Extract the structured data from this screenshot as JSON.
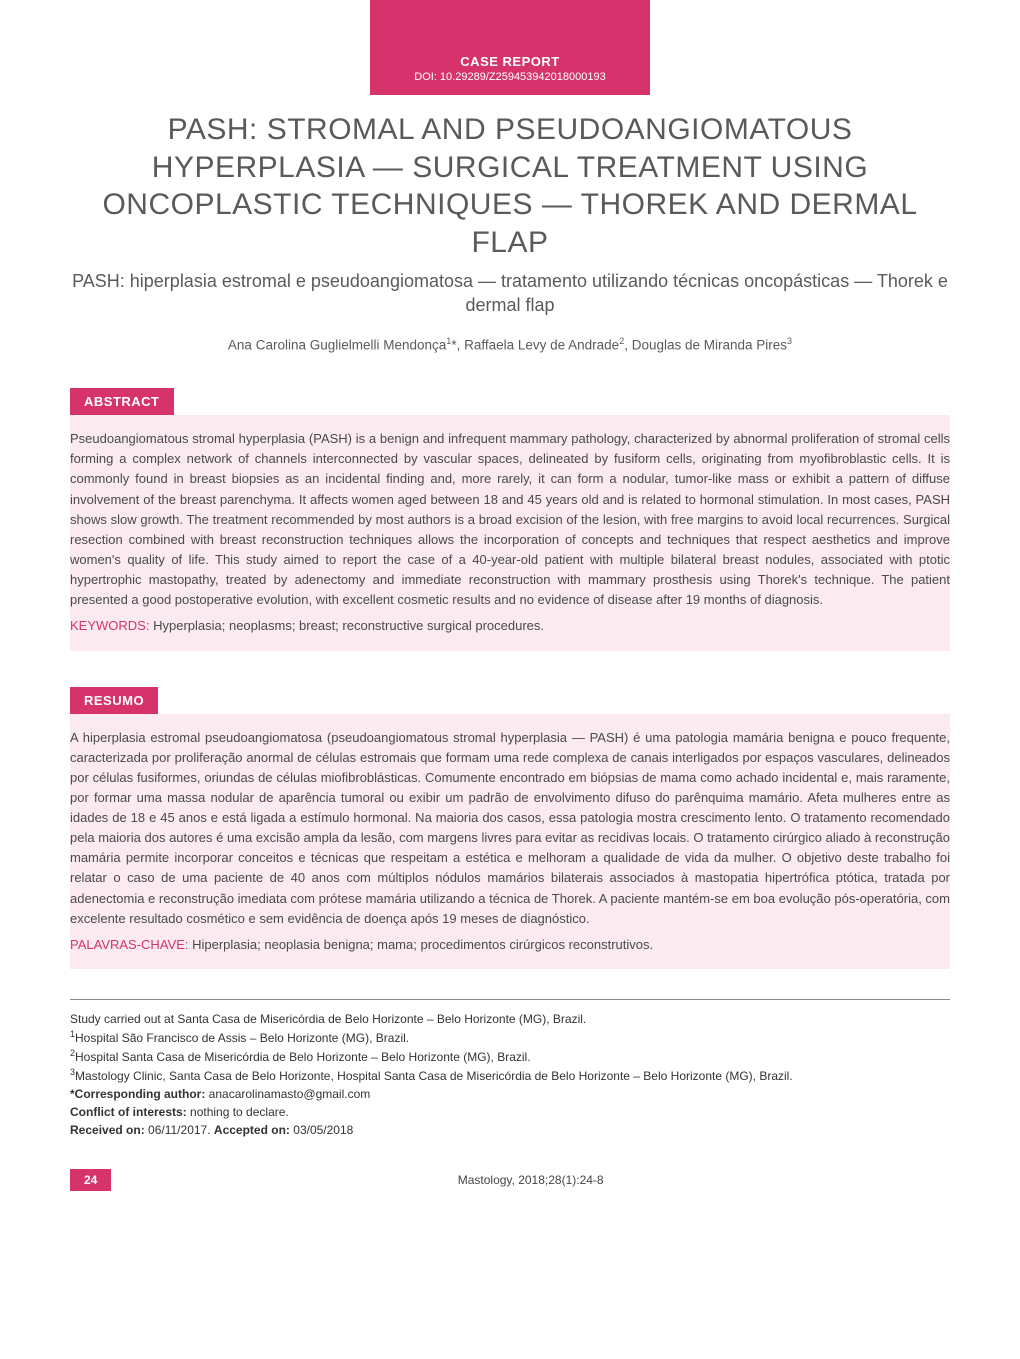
{
  "header": {
    "label": "CASE REPORT",
    "doi": "DOI: 10.29289/Z259453942018000193"
  },
  "title_en": "PASH: STROMAL AND PSEUDOANGIOMATOUS HYPERPLASIA — SURGICAL TREATMENT USING ONCOPLASTIC TECHNIQUES — THOREK AND DERMAL FLAP",
  "title_pt": "PASH: hiperplasia estromal e pseudoangiomatosa — tratamento utilizando técnicas oncopásticas — Thorek e dermal flap",
  "authors_html": "Ana Carolina Guglielmelli Mendonça<sup>1</sup>*, Raffaela Levy de Andrade<sup>2</sup>, Douglas de Miranda Pires<sup>3</sup>",
  "abstract": {
    "heading": "ABSTRACT",
    "body": "Pseudoangiomatous stromal hyperplasia (PASH) is a benign and infrequent mammary pathology, characterized by abnormal proliferation of stromal cells forming a complex network of channels interconnected by vascular spaces, delineated by fusiform cells, originating from myofibroblastic cells. It is commonly found in breast biopsies as an incidental finding and, more rarely, it can form a nodular, tumor-like mass or exhibit a pattern of diffuse involvement of the breast parenchyma. It affects women aged between 18 and 45 years old and is related to hormonal stimulation. In most cases, PASH shows slow growth. The treatment recommended by most authors is a broad excision of the lesion, with free margins to avoid local recurrences. Surgical resection combined with breast reconstruction techniques allows the incorporation of concepts and techniques that respect aesthetics and improve women's quality of life. This study aimed to report the case of a 40-year-old patient with multiple bilateral breast nodules, associated with ptotic hypertrophic mastopathy, treated by adenectomy and immediate reconstruction with mammary prosthesis using Thorek's technique. The patient presented a good postoperative evolution, with excellent cosmetic results and no evidence of disease after 19 months of diagnosis.",
    "keywords_label": "KEYWORDS:",
    "keywords": "Hyperplasia; neoplasms; breast; reconstructive surgical procedures."
  },
  "resumo": {
    "heading": "RESUMO",
    "body": "A hiperplasia estromal pseudoangiomatosa (pseudoangiomatous stromal hyperplasia — PASH) é uma patologia mamária benigna e pouco frequente, caracterizada por proliferação anormal de células estromais que formam uma rede complexa de canais interligados por espaços vasculares, delineados por células fusiformes, oriundas de células miofibroblásticas. Comumente encontrado em biópsias de mama como achado incidental e, mais raramente, por formar uma massa nodular de aparência tumoral ou exibir um padrão de envolvimento difuso do parênquima mamário. Afeta mulheres entre as idades de 18 e 45 anos e está ligada a estímulo hormonal. Na maioria dos casos, essa patologia mostra crescimento lento. O tratamento recomendado pela maioria dos autores é uma excisão ampla da lesão, com margens livres para evitar as recidivas locais. O tratamento cirúrgico aliado à reconstrução mamária permite incorporar conceitos e técnicas que respeitam a estética e melhoram a qualidade de vida da mulher. O objetivo deste trabalho foi relatar o caso de uma paciente de 40 anos com múltiplos nódulos mamários bilaterais associados à mastopatia hipertrófica ptótica, tratada por adenectomia e reconstrução imediata com prótese mamária utilizando a técnica de Thorek. A paciente mantém-se em boa evolução pós-operatória, com excelente resultado cosmético e sem evidência de doença após 19 meses de diagnóstico.",
    "keywords_label": "PALAVRAS-CHAVE:",
    "keywords": "Hiperplasia; neoplasia benigna; mama; procedimentos cirúrgicos reconstrutivos."
  },
  "footer": {
    "study_location": "Study carried out at Santa Casa de Misericórdia de Belo Horizonte – Belo Horizonte (MG), Brazil.",
    "affil1": "Hospital São Francisco de Assis – Belo Horizonte (MG), Brazil.",
    "affil2": "Hospital Santa Casa de Misericórdia de Belo Horizonte – Belo Horizonte (MG), Brazil.",
    "affil3": "Mastology Clinic, Santa Casa de Belo Horizonte, Hospital Santa Casa de Misericórdia de Belo Horizonte – Belo Horizonte (MG), Brazil.",
    "corresponding_label": "*Corresponding author:",
    "corresponding_email": "anacarolinamasto@gmail.com",
    "conflict_label": "Conflict of interests:",
    "conflict_text": "nothing to declare.",
    "received_label": "Received on:",
    "received_date": "06/11/2017.",
    "accepted_label": "Accepted on:",
    "accepted_date": "03/05/2018"
  },
  "page_footer": {
    "page_number": "24",
    "journal_ref": "Mastology, 2018;28(1):24-8"
  },
  "colors": {
    "accent": "#d6336c",
    "abstract_bg": "#fbeaf0",
    "text_body": "#4a4a4a",
    "title_gray": "#5a5a5a"
  }
}
